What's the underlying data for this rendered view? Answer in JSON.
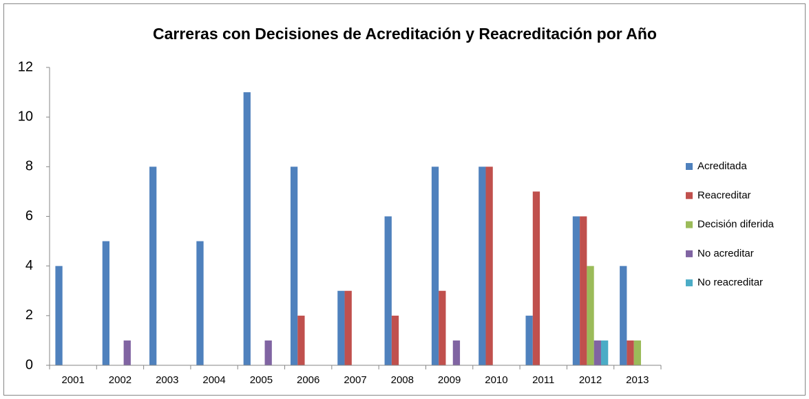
{
  "chart_data": {
    "type": "bar",
    "title": "Carreras con Decisiones de Acreditación y Reacreditación por Año",
    "categories": [
      "2001",
      "2002",
      "2003",
      "2004",
      "2005",
      "2006",
      "2007",
      "2008",
      "2009",
      "2010",
      "2011",
      "2012",
      "2013"
    ],
    "series": [
      {
        "name": "Acreditada",
        "color": "#4f81bd",
        "values": [
          4,
          5,
          8,
          5,
          11,
          8,
          3,
          6,
          8,
          8,
          2,
          6,
          4
        ]
      },
      {
        "name": "Reacreditar",
        "color": "#c0504d",
        "values": [
          0,
          0,
          0,
          0,
          0,
          2,
          3,
          2,
          3,
          8,
          7,
          6,
          1
        ]
      },
      {
        "name": "Decisión diferida",
        "color": "#9bbb59",
        "values": [
          0,
          0,
          0,
          0,
          0,
          0,
          0,
          0,
          0,
          0,
          0,
          4,
          1
        ]
      },
      {
        "name": "No acreditar",
        "color": "#8064a2",
        "values": [
          0,
          1,
          0,
          0,
          1,
          0,
          0,
          0,
          1,
          0,
          0,
          1,
          0
        ]
      },
      {
        "name": "No reacreditar",
        "color": "#4bacc6",
        "values": [
          0,
          0,
          0,
          0,
          0,
          0,
          0,
          0,
          0,
          0,
          0,
          1,
          0
        ]
      }
    ],
    "ylim": [
      0,
      12
    ],
    "yticks": [
      0,
      2,
      4,
      6,
      8,
      10,
      12
    ],
    "grid": false,
    "legend": "right"
  }
}
